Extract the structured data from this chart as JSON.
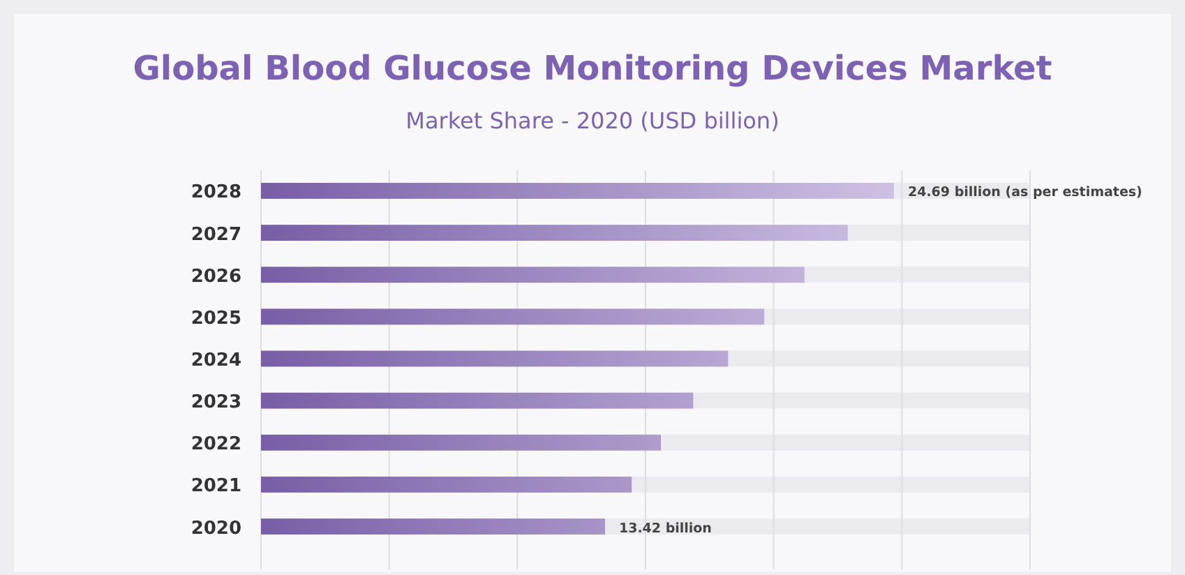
{
  "chart_data": {
    "type": "bar",
    "orientation": "horizontal",
    "title": "Global Blood Glucose Monitoring Devices Market",
    "subtitle": "Market Share - 2020 (USD billion)",
    "categories": [
      "2028",
      "2027",
      "2026",
      "2025",
      "2024",
      "2023",
      "2022",
      "2021",
      "2020"
    ],
    "values": [
      24.69,
      22.89,
      21.2,
      19.63,
      18.22,
      16.86,
      15.6,
      14.46,
      13.42
    ],
    "value_labels": [
      "24.69 billion (as per estimates)",
      null,
      null,
      null,
      null,
      null,
      null,
      null,
      "13.42 billion"
    ],
    "color": "#8a6cbf",
    "xlim": [
      0,
      30
    ],
    "xticks": [
      {
        "value": 0,
        "label": null
      },
      {
        "value": 5,
        "label": null
      },
      {
        "value": 10,
        "label": null
      },
      {
        "value": 15,
        "label": null
      },
      {
        "value": 20,
        "label": null
      },
      {
        "value": 25,
        "label": null
      },
      {
        "value": 30,
        "label": null
      }
    ],
    "grid": "x",
    "tick_labels": "y"
  }
}
